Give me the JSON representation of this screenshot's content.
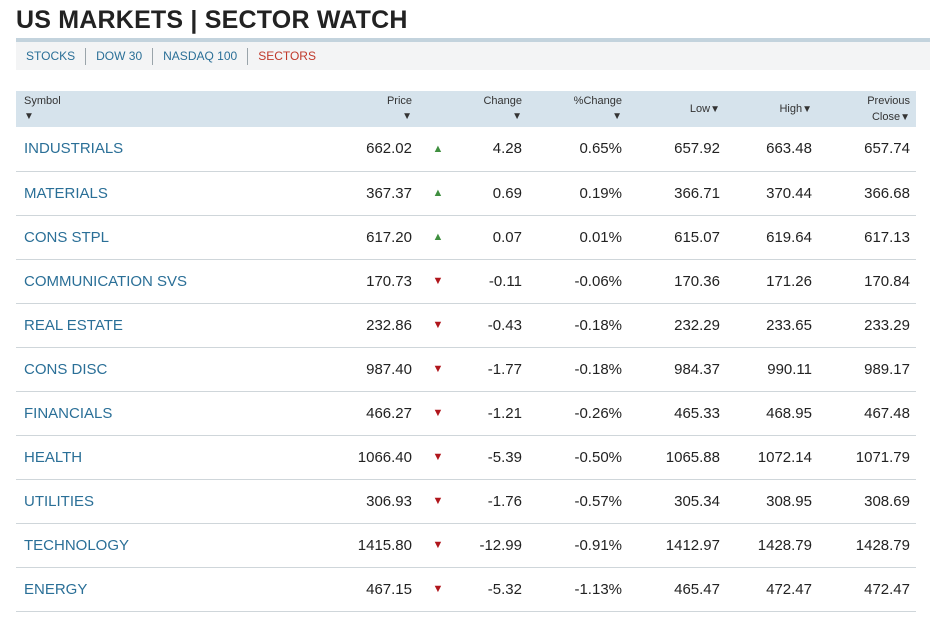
{
  "page": {
    "title": "US MARKETS | SECTOR WATCH"
  },
  "tabs": [
    {
      "label": "STOCKS",
      "active": false
    },
    {
      "label": "DOW 30",
      "active": false
    },
    {
      "label": "NASDAQ 100",
      "active": false
    },
    {
      "label": "SECTORS",
      "active": true
    }
  ],
  "columns": {
    "symbol": "Symbol",
    "price": "Price",
    "change": "Change",
    "pct_change": "%Change",
    "low": "Low",
    "high": "High",
    "prev_line1": "Previous",
    "prev_line2": "Close"
  },
  "colors": {
    "link": "#2a6f97",
    "active_tab": "#c0392b",
    "up": "#3f8f3f",
    "down": "#b0161c",
    "header_bg": "#d6e3ec"
  },
  "rows": [
    {
      "symbol": "INDUSTRIALS",
      "price": "662.02",
      "direction": "up",
      "change": "4.28",
      "pct_change": "0.65%",
      "low": "657.92",
      "high": "663.48",
      "prev_close": "657.74"
    },
    {
      "symbol": "MATERIALS",
      "price": "367.37",
      "direction": "up",
      "change": "0.69",
      "pct_change": "0.19%",
      "low": "366.71",
      "high": "370.44",
      "prev_close": "366.68"
    },
    {
      "symbol": "CONS STPL",
      "price": "617.20",
      "direction": "up",
      "change": "0.07",
      "pct_change": "0.01%",
      "low": "615.07",
      "high": "619.64",
      "prev_close": "617.13"
    },
    {
      "symbol": "COMMUNICATION SVS",
      "price": "170.73",
      "direction": "down",
      "change": "-0.11",
      "pct_change": "-0.06%",
      "low": "170.36",
      "high": "171.26",
      "prev_close": "170.84"
    },
    {
      "symbol": "REAL ESTATE",
      "price": "232.86",
      "direction": "down",
      "change": "-0.43",
      "pct_change": "-0.18%",
      "low": "232.29",
      "high": "233.65",
      "prev_close": "233.29"
    },
    {
      "symbol": "CONS DISC",
      "price": "987.40",
      "direction": "down",
      "change": "-1.77",
      "pct_change": "-0.18%",
      "low": "984.37",
      "high": "990.11",
      "prev_close": "989.17"
    },
    {
      "symbol": "FINANCIALS",
      "price": "466.27",
      "direction": "down",
      "change": "-1.21",
      "pct_change": "-0.26%",
      "low": "465.33",
      "high": "468.95",
      "prev_close": "467.48"
    },
    {
      "symbol": "HEALTH",
      "price": "1066.40",
      "direction": "down",
      "change": "-5.39",
      "pct_change": "-0.50%",
      "low": "1065.88",
      "high": "1072.14",
      "prev_close": "1071.79"
    },
    {
      "symbol": "UTILITIES",
      "price": "306.93",
      "direction": "down",
      "change": "-1.76",
      "pct_change": "-0.57%",
      "low": "305.34",
      "high": "308.95",
      "prev_close": "308.69"
    },
    {
      "symbol": "TECHNOLOGY",
      "price": "1415.80",
      "direction": "down",
      "change": "-12.99",
      "pct_change": "-0.91%",
      "low": "1412.97",
      "high": "1428.79",
      "prev_close": "1428.79"
    },
    {
      "symbol": "ENERGY",
      "price": "467.15",
      "direction": "down",
      "change": "-5.32",
      "pct_change": "-1.13%",
      "low": "465.47",
      "high": "472.47",
      "prev_close": "472.47"
    }
  ]
}
